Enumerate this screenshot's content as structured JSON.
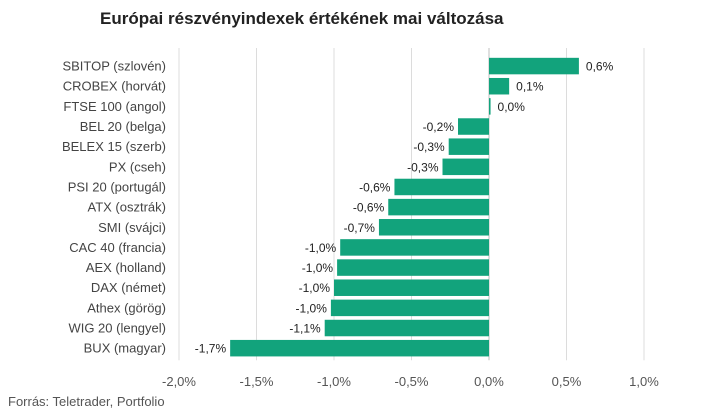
{
  "chart_data": {
    "type": "bar",
    "orientation": "horizontal",
    "title": "Európai részvényindexek értékének mai változása",
    "xlabel": "",
    "ylabel": "",
    "xlim": [
      -2.0,
      1.0
    ],
    "grid": true,
    "bar_color": "#12a37c",
    "categories": [
      "SBITOP (szlovén)",
      "CROBEX (horvát)",
      "FTSE 100 (angol)",
      "BEL 20 (belga)",
      "BELEX 15 (szerb)",
      "PX (cseh)",
      "PSI 20 (portugál)",
      "ATX (osztrák)",
      "SMI (svájci)",
      "CAC 40 (francia)",
      "AEX (holland)",
      "DAX (német)",
      "Athex (görög)",
      "WIG 20 (lengyel)",
      "BUX (magyar)"
    ],
    "values": [
      0.58,
      0.13,
      0.01,
      -0.2,
      -0.26,
      -0.3,
      -0.61,
      -0.65,
      -0.71,
      -0.96,
      -0.98,
      -1.0,
      -1.02,
      -1.06,
      -1.67
    ],
    "data_labels": [
      "0,6%",
      "0,1%",
      "0,0%",
      "-0,2%",
      "-0,3%",
      "-0,3%",
      "-0,6%",
      "-0,6%",
      "-0,7%",
      "-1,0%",
      "-1,0%",
      "-1,0%",
      "-1,0%",
      "-1,1%",
      "-1,7%"
    ],
    "ticks": [
      -2.0,
      -1.5,
      -1.0,
      -0.5,
      0.0,
      0.5,
      1.0
    ],
    "tick_labels": [
      "-2,0%",
      "-1,5%",
      "-1,0%",
      "-0,5%",
      "0,0%",
      "0,5%",
      "1,0%"
    ]
  },
  "source": "Forrás: Teletrader, Portfolio"
}
